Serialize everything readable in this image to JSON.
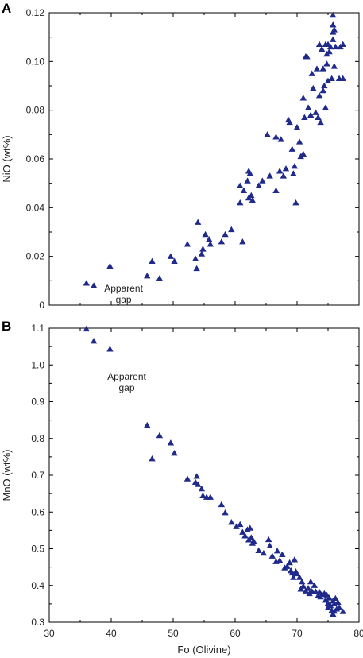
{
  "chart_data": [
    {
      "type": "scatter",
      "panel_label": "A",
      "xlabel": "",
      "ylabel": "NiO (wt%)",
      "xlim": [
        30,
        80
      ],
      "ylim": [
        0,
        0.12
      ],
      "xticks": [
        "30",
        "40",
        "50",
        "60",
        "70",
        "80"
      ],
      "yticks": [
        "0",
        "0.02",
        "0.04",
        "0.06",
        "0.08",
        "0.10",
        "0.12"
      ],
      "yticks_values": [
        0,
        0.02,
        0.04,
        0.06,
        0.08,
        0.1,
        0.12
      ],
      "annotation": {
        "lines": [
          "Apparent",
          "gap"
        ],
        "x": 42,
        "y": 0.0055
      },
      "marker": "triangle",
      "color": "#1f2a8a",
      "points": [
        [
          36.0,
          0.009
        ],
        [
          37.2,
          0.008
        ],
        [
          39.8,
          0.016
        ],
        [
          45.8,
          0.012
        ],
        [
          46.6,
          0.018
        ],
        [
          47.8,
          0.011
        ],
        [
          49.6,
          0.02
        ],
        [
          50.2,
          0.018
        ],
        [
          52.3,
          0.025
        ],
        [
          53.6,
          0.019
        ],
        [
          53.8,
          0.015
        ],
        [
          54.0,
          0.034
        ],
        [
          54.6,
          0.021
        ],
        [
          54.8,
          0.023
        ],
        [
          55.2,
          0.029
        ],
        [
          55.8,
          0.027
        ],
        [
          56.0,
          0.025
        ],
        [
          57.8,
          0.026
        ],
        [
          58.4,
          0.029
        ],
        [
          59.4,
          0.031
        ],
        [
          60.8,
          0.042
        ],
        [
          60.8,
          0.049
        ],
        [
          61.2,
          0.026
        ],
        [
          61.4,
          0.047
        ],
        [
          62.0,
          0.051
        ],
        [
          62.2,
          0.055
        ],
        [
          62.2,
          0.044
        ],
        [
          62.4,
          0.054
        ],
        [
          62.6,
          0.045
        ],
        [
          62.8,
          0.043
        ],
        [
          63.8,
          0.049
        ],
        [
          64.4,
          0.051
        ],
        [
          65.2,
          0.07
        ],
        [
          65.6,
          0.053
        ],
        [
          66.6,
          0.047
        ],
        [
          66.6,
          0.069
        ],
        [
          67.2,
          0.055
        ],
        [
          67.4,
          0.068
        ],
        [
          67.8,
          0.053
        ],
        [
          68.2,
          0.056
        ],
        [
          68.6,
          0.076
        ],
        [
          68.8,
          0.075
        ],
        [
          69.2,
          0.064
        ],
        [
          69.4,
          0.054
        ],
        [
          69.6,
          0.057
        ],
        [
          69.8,
          0.042
        ],
        [
          70.0,
          0.073
        ],
        [
          70.4,
          0.067
        ],
        [
          70.6,
          0.061
        ],
        [
          71.0,
          0.062
        ],
        [
          71.0,
          0.085
        ],
        [
          71.2,
          0.077
        ],
        [
          71.4,
          0.102
        ],
        [
          71.6,
          0.102
        ],
        [
          71.8,
          0.081
        ],
        [
          72.2,
          0.078
        ],
        [
          72.4,
          0.095
        ],
        [
          72.6,
          0.089
        ],
        [
          73.0,
          0.079
        ],
        [
          73.4,
          0.077
        ],
        [
          73.6,
          0.086
        ],
        [
          73.6,
          0.107
        ],
        [
          73.8,
          0.075
        ],
        [
          74.0,
          0.105
        ],
        [
          74.2,
          0.088
        ],
        [
          74.4,
          0.09
        ],
        [
          74.6,
          0.081
        ],
        [
          74.6,
          0.107
        ],
        [
          74.8,
          0.103
        ],
        [
          74.8,
          0.099
        ],
        [
          75.0,
          0.092
        ],
        [
          75.0,
          0.107
        ],
        [
          75.2,
          0.104
        ],
        [
          75.4,
          0.106
        ],
        [
          75.6,
          0.093
        ],
        [
          75.8,
          0.119
        ],
        [
          75.8,
          0.115
        ],
        [
          75.8,
          0.112
        ],
        [
          75.8,
          0.109
        ],
        [
          76.0,
          0.113
        ],
        [
          76.0,
          0.098
        ],
        [
          76.2,
          0.106
        ],
        [
          76.8,
          0.093
        ],
        [
          77.0,
          0.106
        ],
        [
          77.4,
          0.093
        ],
        [
          77.4,
          0.107
        ],
        [
          74.2,
          0.097
        ],
        [
          73.2,
          0.097
        ]
      ]
    },
    {
      "type": "scatter",
      "panel_label": "B",
      "xlabel": "Fo (Olivine)",
      "ylabel": "MnO (wt%)",
      "xlim": [
        30,
        80
      ],
      "ylim": [
        0.3,
        1.1
      ],
      "xticks": [
        "30",
        "40",
        "50",
        "60",
        "70",
        "80"
      ],
      "yticks": [
        "0.3",
        "0.4",
        "0.5",
        "0.6",
        "0.7",
        "0.8",
        "0.9",
        "1.0",
        "1.1"
      ],
      "yticks_values": [
        0.3,
        0.4,
        0.5,
        0.6,
        0.7,
        0.8,
        0.9,
        1.0,
        1.1
      ],
      "annotation": {
        "lines": [
          "Apparent",
          "gap"
        ],
        "x": 42.5,
        "y": 0.96
      },
      "marker": "triangle",
      "color": "#1f2a8a",
      "points": [
        [
          36.0,
          1.098
        ],
        [
          37.2,
          1.065
        ],
        [
          39.8,
          1.043
        ],
        [
          45.8,
          0.836
        ],
        [
          46.6,
          0.745
        ],
        [
          47.8,
          0.808
        ],
        [
          49.6,
          0.788
        ],
        [
          50.2,
          0.76
        ],
        [
          52.3,
          0.69
        ],
        [
          53.6,
          0.681
        ],
        [
          53.8,
          0.697
        ],
        [
          54.0,
          0.675
        ],
        [
          54.6,
          0.663
        ],
        [
          54.8,
          0.644
        ],
        [
          55.4,
          0.64
        ],
        [
          56.0,
          0.64
        ],
        [
          57.8,
          0.62
        ],
        [
          58.4,
          0.598
        ],
        [
          59.4,
          0.572
        ],
        [
          60.2,
          0.56
        ],
        [
          60.8,
          0.566
        ],
        [
          61.2,
          0.545
        ],
        [
          61.6,
          0.535
        ],
        [
          62.0,
          0.552
        ],
        [
          62.2,
          0.524
        ],
        [
          62.4,
          0.556
        ],
        [
          62.6,
          0.53
        ],
        [
          62.8,
          0.515
        ],
        [
          63.0,
          0.52
        ],
        [
          63.8,
          0.495
        ],
        [
          64.6,
          0.488
        ],
        [
          65.4,
          0.525
        ],
        [
          65.6,
          0.508
        ],
        [
          66.0,
          0.48
        ],
        [
          66.6,
          0.465
        ],
        [
          66.8,
          0.494
        ],
        [
          67.2,
          0.468
        ],
        [
          67.6,
          0.484
        ],
        [
          68.0,
          0.448
        ],
        [
          68.4,
          0.452
        ],
        [
          68.8,
          0.462
        ],
        [
          69.0,
          0.44
        ],
        [
          69.2,
          0.434
        ],
        [
          69.4,
          0.422
        ],
        [
          69.6,
          0.47
        ],
        [
          69.8,
          0.438
        ],
        [
          70.0,
          0.432
        ],
        [
          70.4,
          0.422
        ],
        [
          70.8,
          0.41
        ],
        [
          71.0,
          0.398
        ],
        [
          71.4,
          0.385
        ],
        [
          71.8,
          0.392
        ],
        [
          72.2,
          0.41
        ],
        [
          72.4,
          0.384
        ],
        [
          72.8,
          0.4
        ],
        [
          73.0,
          0.383
        ],
        [
          73.4,
          0.372
        ],
        [
          73.6,
          0.382
        ],
        [
          73.8,
          0.369
        ],
        [
          74.0,
          0.376
        ],
        [
          74.4,
          0.378
        ],
        [
          74.6,
          0.36
        ],
        [
          74.8,
          0.374
        ],
        [
          75.0,
          0.352
        ],
        [
          75.0,
          0.34
        ],
        [
          75.2,
          0.366
        ],
        [
          75.4,
          0.345
        ],
        [
          75.6,
          0.332
        ],
        [
          75.8,
          0.358
        ],
        [
          75.8,
          0.322
        ],
        [
          76.0,
          0.35
        ],
        [
          76.0,
          0.33
        ],
        [
          76.2,
          0.365
        ],
        [
          76.4,
          0.336
        ],
        [
          76.6,
          0.354
        ],
        [
          76.8,
          0.34
        ],
        [
          77.4,
          0.329
        ],
        [
          72.0,
          0.378
        ],
        [
          70.6,
          0.39
        ]
      ]
    }
  ]
}
